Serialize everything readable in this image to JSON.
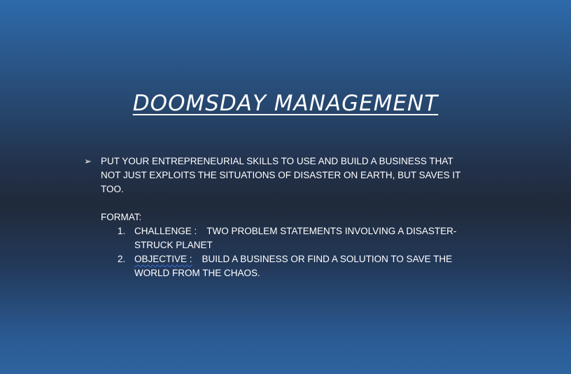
{
  "slide": {
    "title": "DOOMSDAY MANAGEMENT",
    "bullet_text": "PUT YOUR ENTREPRENEURIAL SKILLS TO USE AND BUILD A BUSINESS THAT NOT JUST EXPLOITS THE SITUATIONS OF DISASTER ON EARTH, BUT SAVES IT TOO.",
    "format_label": "FORMAT:",
    "items": [
      {
        "number": "1.",
        "term": "CHALLENGE :",
        "text": "TWO PROBLEM STATEMENTS INVOLVING A DISASTER-STRUCK PLANET"
      },
      {
        "number": "2.",
        "term": "OBJECTIVE :",
        "text": "BUILD A BUSINESS OR FIND A SOLUTION TO SAVE THE WORLD FROM THE CHAOS."
      }
    ]
  }
}
